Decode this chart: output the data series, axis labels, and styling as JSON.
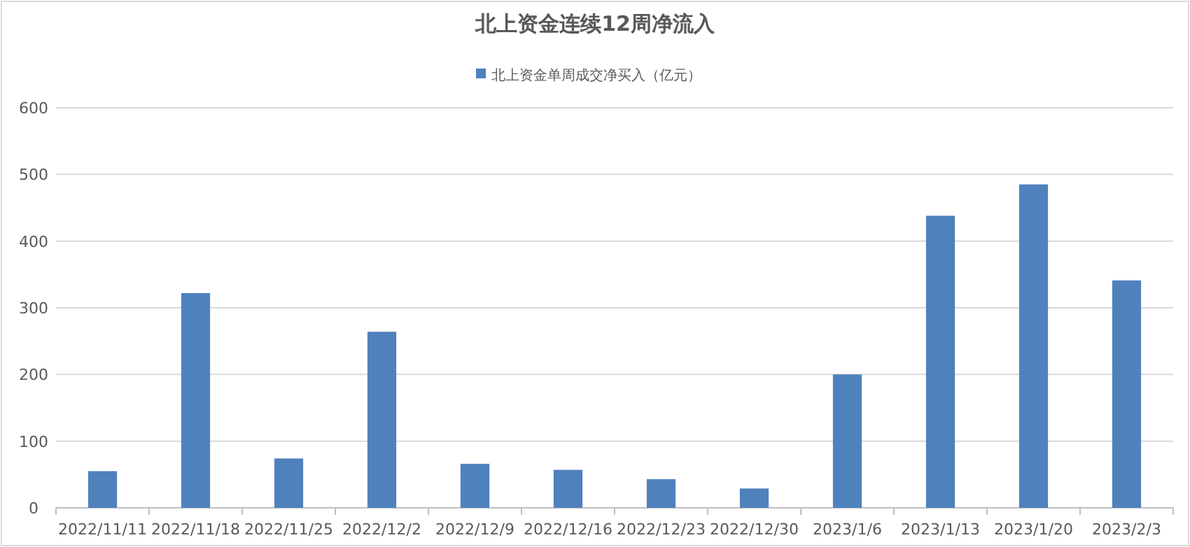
{
  "chart_data": {
    "type": "bar",
    "title": "北上资金连续12周净流入",
    "categories": [
      "2022/11/11",
      "2022/11/18",
      "2022/11/25",
      "2022/12/2",
      "2022/12/9",
      "2022/12/16",
      "2022/12/23",
      "2022/12/30",
      "2023/1/6",
      "2023/1/13",
      "2023/1/20",
      "2023/2/3"
    ],
    "series": [
      {
        "name": "北上资金单周成交净买入（亿元）",
        "color": "#4f81bd",
        "values": [
          55,
          322,
          74,
          264,
          66,
          57,
          43,
          29,
          200,
          438,
          485,
          341
        ]
      }
    ],
    "ylim": [
      0,
      600
    ],
    "yticks": [
      0,
      100,
      200,
      300,
      400,
      500,
      600
    ],
    "grid": "y",
    "legend": "top"
  }
}
